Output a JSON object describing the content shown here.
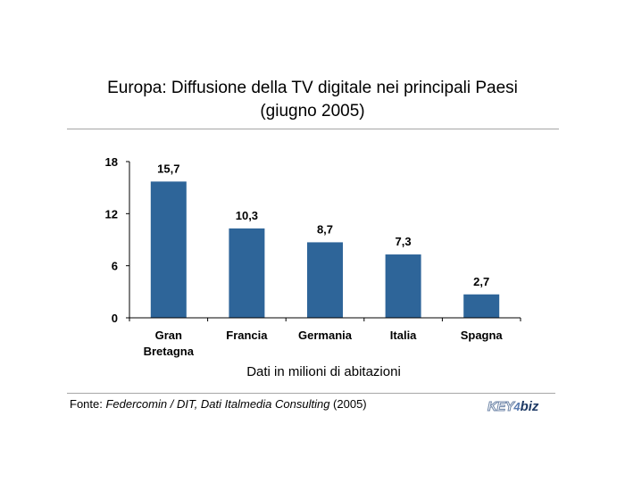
{
  "chart_data": {
    "type": "bar",
    "title": [
      "Europa: Diffusione della TV digitale nei principali Paesi",
      "(giugno 2005)"
    ],
    "categories": [
      [
        "Gran",
        "Bretagna"
      ],
      [
        "Francia"
      ],
      [
        "Germania"
      ],
      [
        "Italia"
      ],
      [
        "Spagna"
      ]
    ],
    "values": [
      15.7,
      10.3,
      8.7,
      7.3,
      2.7
    ],
    "value_labels": [
      "15,7",
      "10,3",
      "8,7",
      "7,3",
      "2,7"
    ],
    "yticks": [
      0,
      6,
      12,
      18
    ],
    "ylim": [
      0,
      18
    ],
    "xlabel": "Dati in milioni di abitazioni",
    "ylabel": "",
    "grid": false,
    "bar_color": "#2e6599"
  },
  "source": {
    "prefix": "Fonte: ",
    "italic": "Federcomin / DIT, Dati Italmedia Consulting",
    "suffix": " (2005)"
  },
  "logo": {
    "part1": "KEY",
    "part2": "4",
    "part3": "biz"
  }
}
